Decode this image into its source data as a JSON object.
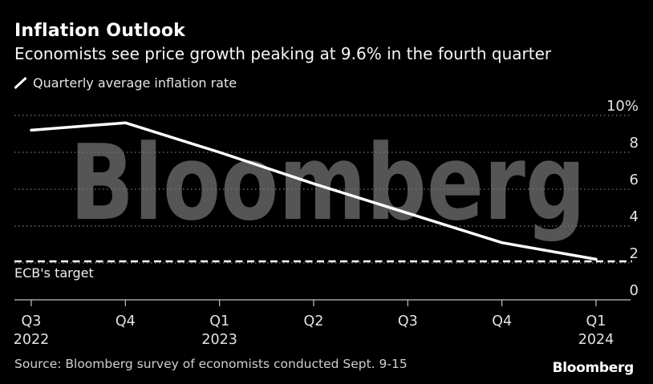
{
  "header": {
    "title": "Inflation Outlook",
    "subtitle": "Economists see price growth peaking at 9.6% in the fourth quarter"
  },
  "legend": {
    "icon": "line-slash-icon",
    "label": "Quarterly average inflation rate"
  },
  "watermark": "Bloomberg",
  "chart_data": {
    "type": "line",
    "title": "Inflation Outlook",
    "series_name": "Quarterly average inflation rate",
    "categories": [
      "Q3 2022",
      "Q4 2022",
      "Q1 2023",
      "Q2 2023",
      "Q3 2023",
      "Q4 2023",
      "Q1 2024"
    ],
    "values": [
      9.2,
      9.6,
      8.0,
      6.3,
      4.7,
      3.1,
      2.2
    ],
    "x_tick_labels": [
      "Q3",
      "Q4",
      "Q1",
      "Q2",
      "Q3",
      "Q4",
      "Q1"
    ],
    "x_year_labels": [
      {
        "index": 0,
        "label": "2022"
      },
      {
        "index": 2,
        "label": "2023"
      },
      {
        "index": 6,
        "label": "2024"
      }
    ],
    "y_ticks": [
      0,
      2,
      4,
      6,
      8,
      10
    ],
    "y_tick_labels": [
      "0",
      "2",
      "4",
      "6",
      "8",
      "10%"
    ],
    "ylim": [
      0,
      10
    ],
    "grid": "horizontal-dotted",
    "legend_position": "top-left",
    "reference_line": {
      "value": 2,
      "label": "ECB's target",
      "style": "dashed"
    }
  },
  "footer": {
    "source": "Source: Bloomberg survey of economists conducted Sept. 9-15",
    "logo": "Bloomberg"
  },
  "colors": {
    "background": "#000000",
    "line": "#ffffff",
    "reference_line": "#ffffff",
    "gridline": "#7a7a7a",
    "axis": "#c4c4c4",
    "tick_label": "#e2e2e2",
    "watermark": "#555555",
    "title": "#ffffff",
    "source_text": "#cfcfcf"
  }
}
